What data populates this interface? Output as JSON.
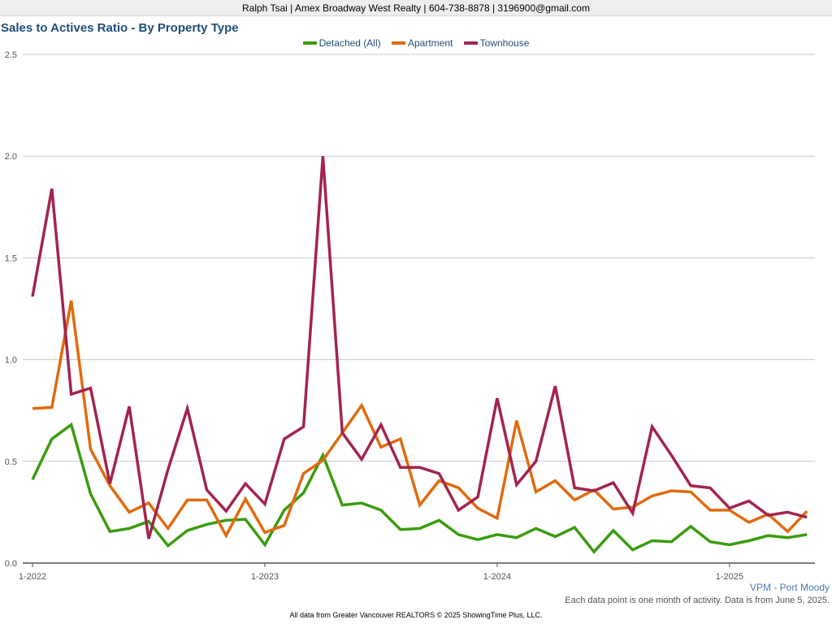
{
  "header": {
    "contact": "Ralph Tsai | Amex Broadway West Realty | 604-738-8878 | 3196900@gmail.com"
  },
  "footer": {
    "location": "VPM - Port Moody",
    "note": "Each data point is one month of activity. Data is from June 5, 2025.",
    "copyright": "All data from Greater Vancouver REALTORS © 2025 ShowingTime Plus, LLC."
  },
  "colors": {
    "detached": "#3a9c10",
    "apartment": "#e06b10",
    "townhouse": "#a3244e",
    "grid": "#c8c8c8",
    "axis": "#555555"
  },
  "chart_data": {
    "type": "line",
    "title": "Sales to Actives Ratio - By Property Type",
    "xlabel": "",
    "ylabel": "",
    "ylim": [
      0,
      2.5
    ],
    "yticks": [
      "0.0",
      "0.5",
      "1.0",
      "1.5",
      "2.0",
      "2.5"
    ],
    "xticks": [
      "1-2022",
      "1-2023",
      "1-2024",
      "1-2025"
    ],
    "grid": true,
    "legend_position": "top-center",
    "x": [
      "2022-01",
      "2022-02",
      "2022-03",
      "2022-04",
      "2022-05",
      "2022-06",
      "2022-07",
      "2022-08",
      "2022-09",
      "2022-10",
      "2022-11",
      "2022-12",
      "2023-01",
      "2023-02",
      "2023-03",
      "2023-04",
      "2023-05",
      "2023-06",
      "2023-07",
      "2023-08",
      "2023-09",
      "2023-10",
      "2023-11",
      "2023-12",
      "2024-01",
      "2024-02",
      "2024-03",
      "2024-04",
      "2024-05",
      "2024-06",
      "2024-07",
      "2024-08",
      "2024-09",
      "2024-10",
      "2024-11",
      "2024-12",
      "2025-01",
      "2025-02",
      "2025-03",
      "2025-04",
      "2025-05"
    ],
    "series": [
      {
        "name": "Detached (All)",
        "values": [
          0.41,
          0.61,
          0.68,
          0.34,
          0.155,
          0.17,
          0.205,
          0.085,
          0.16,
          0.19,
          0.21,
          0.215,
          0.09,
          0.26,
          0.345,
          0.53,
          0.285,
          0.295,
          0.26,
          0.165,
          0.17,
          0.21,
          0.14,
          0.115,
          0.14,
          0.125,
          0.17,
          0.13,
          0.175,
          0.055,
          0.16,
          0.065,
          0.11,
          0.105,
          0.18,
          0.105,
          0.09,
          0.11,
          0.135,
          0.125,
          0.14
        ]
      },
      {
        "name": "Apartment",
        "values": [
          0.76,
          0.765,
          1.29,
          0.56,
          0.38,
          0.25,
          0.295,
          0.17,
          0.31,
          0.31,
          0.135,
          0.315,
          0.15,
          0.185,
          0.44,
          0.505,
          0.64,
          0.775,
          0.57,
          0.61,
          0.285,
          0.405,
          0.37,
          0.27,
          0.22,
          0.7,
          0.35,
          0.405,
          0.31,
          0.36,
          0.265,
          0.275,
          0.33,
          0.355,
          0.35,
          0.26,
          0.26,
          0.2,
          0.24,
          0.155,
          0.255
        ]
      },
      {
        "name": "Townhouse",
        "values": [
          1.31,
          1.84,
          0.83,
          0.86,
          0.39,
          0.77,
          0.12,
          0.46,
          0.76,
          0.36,
          0.255,
          0.39,
          0.29,
          0.61,
          0.67,
          2.0,
          0.64,
          0.51,
          0.68,
          0.47,
          0.47,
          0.44,
          0.26,
          0.325,
          0.81,
          0.385,
          0.5,
          0.87,
          0.37,
          0.355,
          0.395,
          0.245,
          0.67,
          0.53,
          0.38,
          0.37,
          0.27,
          0.305,
          0.235,
          0.25,
          0.225
        ]
      }
    ]
  }
}
